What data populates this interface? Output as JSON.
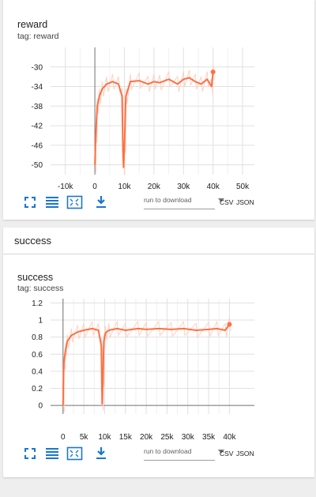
{
  "reward_card": {
    "title": "reward",
    "tag": "tag: reward"
  },
  "section": {
    "title": "success"
  },
  "success_card": {
    "title": "success",
    "tag": "tag: success"
  },
  "toolbar": {
    "run_placeholder": "run to download",
    "csv_label": "CSV",
    "json_label": "JSON",
    "icons": [
      "fullscreen-icon",
      "lines-icon",
      "fit-domain-icon",
      "download-icon"
    ]
  },
  "colors": {
    "series": "#ff7043",
    "series_light": "#ffccbc",
    "icon": "#1976d2"
  },
  "chart_data": [
    {
      "type": "line",
      "title": "",
      "xticks": [
        "-10k",
        "0",
        "10k",
        "20k",
        "30k",
        "40k",
        "50k"
      ],
      "yticks": [
        "-30",
        "-34",
        "-38",
        "-42",
        "-46",
        "-50"
      ],
      "xlim": [
        -15000,
        54000
      ],
      "ylim": [
        -52,
        -26
      ],
      "series": [
        {
          "x": [
            0,
            300,
            800,
            1500,
            2500,
            4000,
            6000,
            8000,
            9200,
            9500,
            9700,
            10000,
            10500,
            12000,
            15000,
            18000,
            20000,
            22000,
            25000,
            28000,
            30000,
            32000,
            34000,
            36000,
            38000,
            39500,
            40000
          ],
          "y": [
            -50,
            -44,
            -38,
            -36,
            -34.5,
            -33.5,
            -33,
            -33.5,
            -36,
            -47,
            -50.5,
            -46,
            -36,
            -33,
            -32.8,
            -33.5,
            -33,
            -33.2,
            -32.5,
            -33.5,
            -32.5,
            -32.2,
            -33,
            -33.5,
            -32.5,
            -34,
            -31
          ]
        }
      ]
    },
    {
      "type": "line",
      "title": "",
      "xticks": [
        "0",
        "5k",
        "10k",
        "15k",
        "20k",
        "25k",
        "30k",
        "35k",
        "40k"
      ],
      "yticks": [
        "1.2",
        "1",
        "0.8",
        "0.6",
        "0.4",
        "0.2",
        "0"
      ],
      "xlim": [
        -3000,
        46000
      ],
      "ylim": [
        -0.1,
        1.25
      ],
      "series": [
        {
          "x": [
            0,
            200,
            600,
            1000,
            2000,
            3500,
            5000,
            7000,
            8500,
            9200,
            9400,
            9600,
            9800,
            10200,
            11000,
            13000,
            15000,
            18000,
            20000,
            23000,
            26000,
            29000,
            32000,
            35000,
            37000,
            39000,
            40000
          ],
          "y": [
            0,
            0.5,
            0.65,
            0.75,
            0.82,
            0.86,
            0.88,
            0.9,
            0.88,
            0.7,
            0.02,
            0.3,
            0.75,
            0.85,
            0.88,
            0.9,
            0.88,
            0.9,
            0.89,
            0.9,
            0.89,
            0.9,
            0.88,
            0.89,
            0.9,
            0.88,
            0.95
          ]
        }
      ]
    }
  ]
}
